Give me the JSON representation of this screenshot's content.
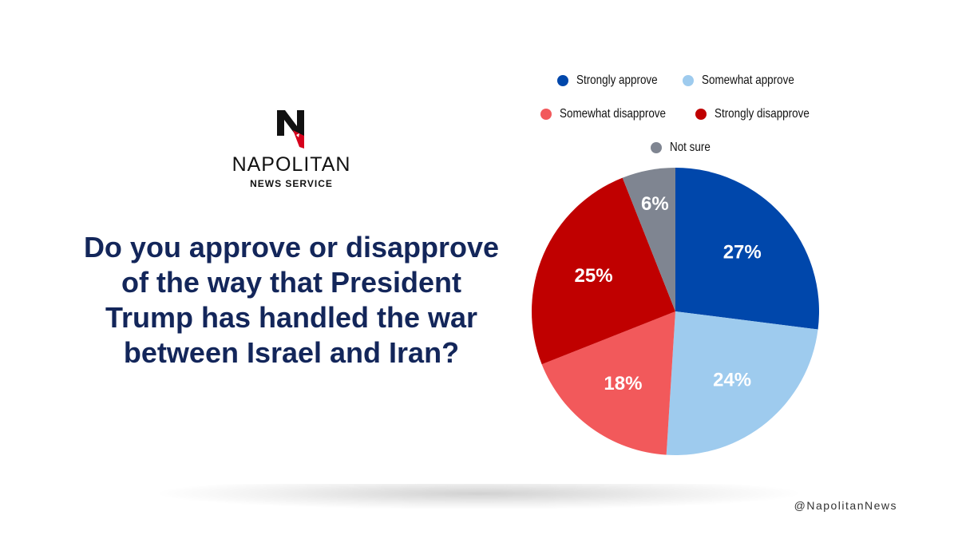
{
  "brand": {
    "name": "NAPOLITAN",
    "subtitle": "NEWS SERVICE",
    "handle": "@NapolitanNews"
  },
  "question": "Do you approve or disapprove of the way that President Trump has handled the war between Israel and Iran?",
  "chart_data": {
    "type": "pie",
    "title": "Do you approve or disapprove of the way that President Trump has handled the war between Israel and Iran?",
    "legend_position": "top",
    "start": "top, clockwise",
    "slices": [
      {
        "label": "Strongly approve",
        "value": 27,
        "display": "27%",
        "color": "#0047ab"
      },
      {
        "label": "Somewhat approve",
        "value": 24,
        "display": "24%",
        "color": "#9ecbee"
      },
      {
        "label": "Somewhat disapprove",
        "value": 18,
        "display": "18%",
        "color": "#f2595b"
      },
      {
        "label": "Strongly disapprove",
        "value": 25,
        "display": "25%",
        "color": "#c00000"
      },
      {
        "label": "Not sure",
        "value": 6,
        "display": "6%",
        "color": "#7f8591"
      }
    ]
  }
}
